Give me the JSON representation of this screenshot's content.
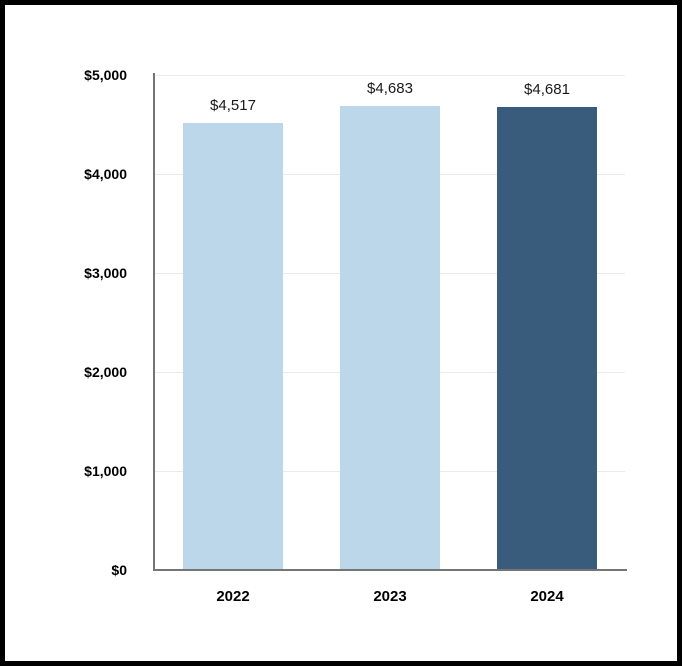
{
  "chart_data": {
    "type": "bar",
    "title": "",
    "xlabel": "",
    "ylabel": "",
    "categories": [
      "2022",
      "2023",
      "2024"
    ],
    "values": [
      4517,
      4683,
      4681
    ],
    "value_labels": [
      "$4,517",
      "$4,683",
      "$4,681"
    ],
    "bar_colors": [
      "#BCD6EA",
      "#BCD6EA",
      "#3A5C7C"
    ],
    "ylim": [
      0,
      5000
    ],
    "y_ticks": [
      {
        "value": 0,
        "label": "$0"
      },
      {
        "value": 1000,
        "label": "$1,000"
      },
      {
        "value": 2000,
        "label": "$2,000"
      },
      {
        "value": 3000,
        "label": "$3,000"
      },
      {
        "value": 4000,
        "label": "$4,000"
      },
      {
        "value": 5000,
        "label": "$5,000"
      }
    ],
    "grid": true,
    "legend": false,
    "colors": {
      "light_bar": "#BCD6EA",
      "dark_bar": "#3A5C7C",
      "gridline": "#EBEBEB",
      "axis_line": "#757575",
      "tick_text": "#000000",
      "value_text": "#1A1A1A",
      "frame_border": "#000000",
      "background": "#FFFFFF"
    }
  }
}
